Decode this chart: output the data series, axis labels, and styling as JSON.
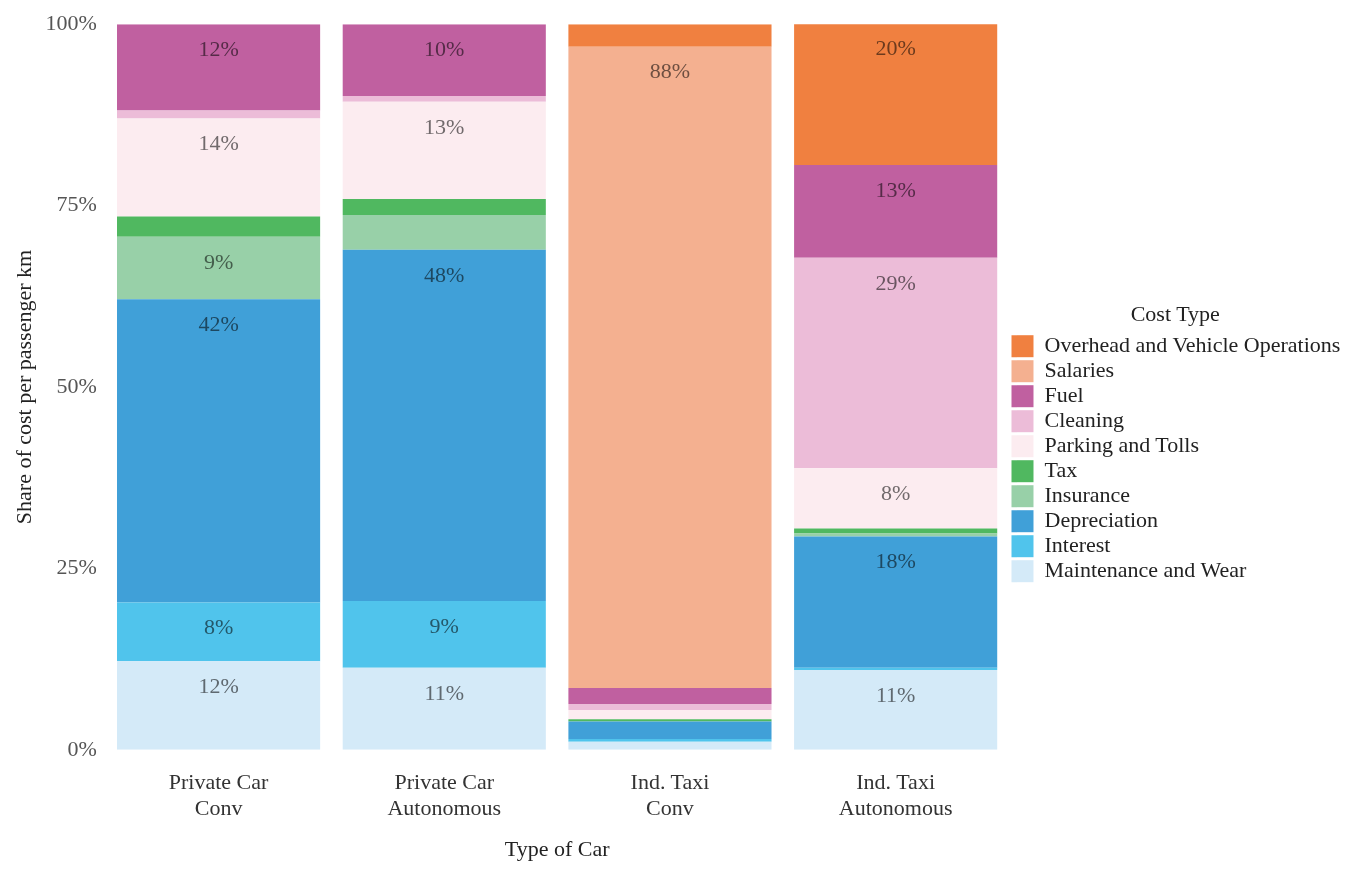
{
  "chart_data": {
    "type": "bar",
    "stacked": true,
    "xlabel": "Type of Car",
    "ylabel": "Share of cost per passenger km",
    "legend_title": "Cost Type",
    "legend": "right",
    "grid": false,
    "categories": [
      "Private Car\nConv",
      "Private Car\nAutonomous",
      "Ind. Taxi\nConv",
      "Ind. Taxi\nAutonomous"
    ],
    "ylim": [
      0,
      100
    ],
    "yticks": [
      {
        "value": 0,
        "label": "0%"
      },
      {
        "value": 25,
        "label": "25%"
      },
      {
        "value": 50,
        "label": "50%"
      },
      {
        "value": 75,
        "label": "75%"
      },
      {
        "value": 100,
        "label": "100%"
      }
    ],
    "series": [
      {
        "name": "Maintenance and Wear",
        "color": "#d4eaf8",
        "values": [
          12.2,
          11.3,
          1.1,
          11.0
        ],
        "value_labels": [
          "12%",
          "11%",
          null,
          "11%"
        ]
      },
      {
        "name": "Interest",
        "color": "#50c4ec",
        "values": [
          8.1,
          9.2,
          0.4,
          0.3
        ],
        "value_labels": [
          "8%",
          "9%",
          null,
          null
        ]
      },
      {
        "name": "Depreciation",
        "color": "#40a0d8",
        "values": [
          41.8,
          48.4,
          2.4,
          18.1
        ],
        "value_labels": [
          "42%",
          "48%",
          null,
          "18%"
        ]
      },
      {
        "name": "Insurance",
        "color": "#98d0a8",
        "values": [
          8.6,
          4.8,
          null,
          0.4
        ],
        "value_labels": [
          "9%",
          null,
          null,
          null
        ]
      },
      {
        "name": "Tax",
        "color": "#50b860",
        "values": [
          2.8,
          2.2,
          0.3,
          0.7
        ],
        "value_labels": [
          null,
          null,
          null,
          null
        ]
      },
      {
        "name": "Parking and Tolls",
        "color": "#fcecf0",
        "values": [
          13.5,
          13.4,
          1.3,
          8.3
        ],
        "value_labels": [
          "14%",
          "13%",
          null,
          "8%"
        ]
      },
      {
        "name": "Cleaning",
        "color": "#ecbcd8",
        "values": [
          1.1,
          0.8,
          0.8,
          29.0
        ],
        "value_labels": [
          null,
          null,
          null,
          "29%"
        ]
      },
      {
        "name": "Fuel",
        "color": "#c060a0",
        "values": [
          11.9,
          9.9,
          2.2,
          12.8
        ],
        "value_labels": [
          "12%",
          "10%",
          null,
          "13%"
        ]
      },
      {
        "name": "Salaries",
        "color": "#f4b090",
        "values": [
          null,
          null,
          88.4,
          null
        ],
        "value_labels": [
          null,
          null,
          "88%",
          null
        ]
      },
      {
        "name": "Overhead and Vehicle Operations",
        "color": "#f08040",
        "values": [
          null,
          null,
          3.1,
          19.6
        ],
        "value_labels": [
          null,
          null,
          null,
          "20%"
        ]
      }
    ]
  }
}
